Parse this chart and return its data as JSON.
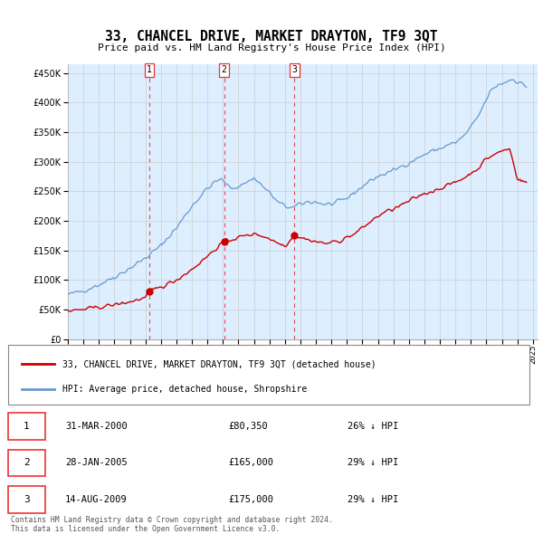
{
  "title": "33, CHANCEL DRIVE, MARKET DRAYTON, TF9 3QT",
  "subtitle": "Price paid vs. HM Land Registry's House Price Index (HPI)",
  "yticks": [
    0,
    50000,
    100000,
    150000,
    200000,
    250000,
    300000,
    350000,
    400000,
    450000
  ],
  "ylim": [
    0,
    465000
  ],
  "xlim_start": 1995.0,
  "xlim_end": 2025.3,
  "sale_prices": [
    80350,
    165000,
    175000
  ],
  "sale_labels": [
    "1",
    "2",
    "3"
  ],
  "sale_pct": [
    "26% ↓ HPI",
    "29% ↓ HPI",
    "29% ↓ HPI"
  ],
  "sale_date_strs": [
    "31-MAR-2000",
    "28-JAN-2005",
    "14-AUG-2009"
  ],
  "sale_price_strs": [
    "£80,350",
    "£165,000",
    "£175,000"
  ],
  "sale_year_floats": [
    2000.25,
    2005.08,
    2009.62
  ],
  "color_price_paid": "#cc0000",
  "color_hpi": "#6699cc",
  "color_hpi_fill": "#ddeeff",
  "color_grid": "#cccccc",
  "color_vline": "#ee3333",
  "legend_label_price": "33, CHANCEL DRIVE, MARKET DRAYTON, TF9 3QT (detached house)",
  "legend_label_hpi": "HPI: Average price, detached house, Shropshire",
  "footnote1": "Contains HM Land Registry data © Crown copyright and database right 2024.",
  "footnote2": "This data is licensed under the Open Government Licence v3.0.",
  "background_color": "#ffffff",
  "plot_bg_color": "#ddeeff"
}
